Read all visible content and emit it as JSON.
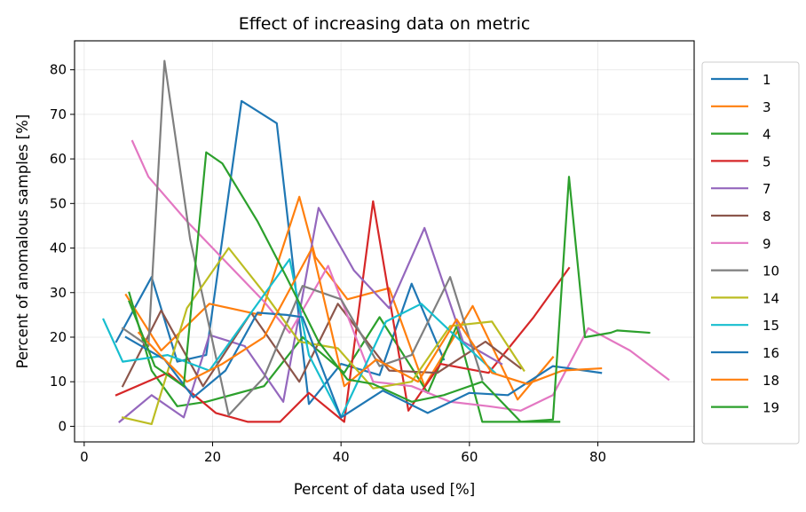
{
  "chart_data": {
    "type": "line",
    "title": "Effect of increasing data on metric",
    "xlabel": "Percent of data used [%]",
    "ylabel": "Percent of anomalous samples [%]",
    "xlim": [
      -1.5,
      95
    ],
    "ylim": [
      -3.5,
      86.5
    ],
    "xticks": [
      0,
      20,
      40,
      60,
      80
    ],
    "yticks": [
      0,
      10,
      20,
      30,
      40,
      50,
      60,
      70,
      80
    ],
    "grid": true,
    "legend_position": "right",
    "series": [
      {
        "name": "1",
        "color": "#1f77b4",
        "x": [
          5,
          10.5,
          14.5,
          19,
          24.5,
          30,
          35,
          40,
          46,
          51,
          56
        ],
        "y": [
          19,
          33.5,
          14.5,
          16,
          73,
          68,
          5,
          14,
          11.5,
          32,
          15
        ]
      },
      {
        "name": "3",
        "color": "#ff7f0e",
        "x": [
          6.5,
          12,
          19.5,
          27.5,
          33.5,
          36,
          41,
          47.5,
          53,
          60.5,
          67.5,
          73
        ],
        "y": [
          29.5,
          17,
          27.5,
          25,
          51.5,
          38,
          28.5,
          31,
          9,
          27,
          6,
          15.5
        ]
      },
      {
        "name": "4",
        "color": "#2ca02c",
        "x": [
          7,
          10.5,
          14.5,
          19,
          28,
          34,
          40.5,
          46,
          53.5,
          58,
          62,
          68.5,
          74
        ],
        "y": [
          30,
          12.5,
          4.5,
          5.5,
          9,
          20,
          12,
          24.5,
          7.5,
          22.5,
          1,
          1,
          1
        ]
      },
      {
        "name": "5",
        "color": "#d62728",
        "x": [
          5,
          13,
          20.5,
          25.5,
          30.5,
          35,
          40.5,
          45,
          50.5,
          55.5,
          63,
          70,
          75.5
        ],
        "y": [
          7,
          12,
          3,
          1,
          1,
          7.5,
          1,
          50.5,
          3.5,
          14,
          12,
          24.5,
          35.5
        ]
      },
      {
        "name": "7",
        "color": "#9467bd",
        "x": [
          5.5,
          10.5,
          15.5,
          19.5,
          25,
          31,
          36.5,
          42,
          47.5,
          53,
          59,
          65
        ],
        "y": [
          1,
          7,
          2,
          20.5,
          18,
          5.5,
          49,
          35,
          26.5,
          44.5,
          19,
          14
        ]
      },
      {
        "name": "8",
        "color": "#8c564b",
        "x": [
          6,
          12,
          18.5,
          26,
          33.5,
          39.5,
          47.5,
          55,
          62.5,
          68
        ],
        "y": [
          9,
          26,
          9,
          25.5,
          10,
          27.5,
          12.5,
          12,
          19,
          13
        ]
      },
      {
        "name": "9",
        "color": "#e377c2",
        "x": [
          7.5,
          10,
          16,
          22,
          28,
          32,
          38,
          45,
          51,
          57,
          63,
          68,
          73,
          78.5,
          85,
          91
        ],
        "y": [
          64,
          56,
          46,
          37,
          28,
          21,
          36,
          10,
          9,
          5.5,
          4.5,
          3.5,
          7,
          22,
          17,
          10.5
        ]
      },
      {
        "name": "10",
        "color": "#7f7f7f",
        "x": [
          6,
          10,
          12.5,
          16.5,
          22.5,
          28,
          34,
          40,
          46,
          51,
          57,
          62
        ],
        "y": [
          22,
          18,
          82,
          42,
          2.5,
          11,
          31.5,
          28.5,
          13.5,
          16,
          33.5,
          10.5
        ]
      },
      {
        "name": "14",
        "color": "#bcbd22",
        "x": [
          6,
          10.5,
          16,
          22.5,
          28,
          33.5,
          39.5,
          45,
          51,
          57,
          63.5,
          68.5
        ],
        "y": [
          2,
          0.5,
          26.5,
          40,
          30,
          19,
          17.5,
          8.5,
          10,
          22.5,
          23.5,
          12.5
        ]
      },
      {
        "name": "15",
        "color": "#17becf",
        "x": [
          3,
          6,
          13,
          19.5,
          25,
          32,
          35,
          40,
          47,
          52.5,
          58,
          64
        ],
        "y": [
          24,
          14.5,
          16,
          12.5,
          23.5,
          37.5,
          16,
          2,
          23.5,
          27.5,
          20,
          12
        ]
      },
      {
        "name": "16",
        "color": "#1f77b4",
        "x": [
          6.5,
          12.5,
          17,
          22,
          27,
          31.5,
          34,
          40,
          46.5,
          53.5,
          60,
          66,
          73,
          80.5
        ],
        "y": [
          20,
          15,
          6.5,
          12.5,
          25.5,
          25,
          24.5,
          2,
          8,
          3,
          7.5,
          7,
          13.5,
          12
        ]
      },
      {
        "name": "18",
        "color": "#ff7f0e",
        "x": [
          8.5,
          11.5,
          16,
          21.5,
          28,
          35.5,
          40.5,
          45.5,
          52,
          58,
          63.5,
          69,
          74.5,
          80.5
        ],
        "y": [
          21,
          16.5,
          10,
          14,
          20,
          40,
          9,
          15,
          10,
          24,
          12,
          9.5,
          12.5,
          13
        ]
      },
      {
        "name": "19",
        "color": "#2ca02c",
        "x": [
          7,
          11,
          15.5,
          19,
          21.5,
          27,
          31.5,
          36.5,
          41,
          45,
          51,
          56,
          62,
          68,
          73,
          75.5,
          78,
          82,
          83,
          88
        ],
        "y": [
          28,
          13.5,
          9,
          61.5,
          59,
          46,
          33.5,
          19,
          10.5,
          9.5,
          5.5,
          7,
          10,
          1,
          1.5,
          56,
          20,
          21,
          21.5,
          21
        ]
      }
    ]
  }
}
